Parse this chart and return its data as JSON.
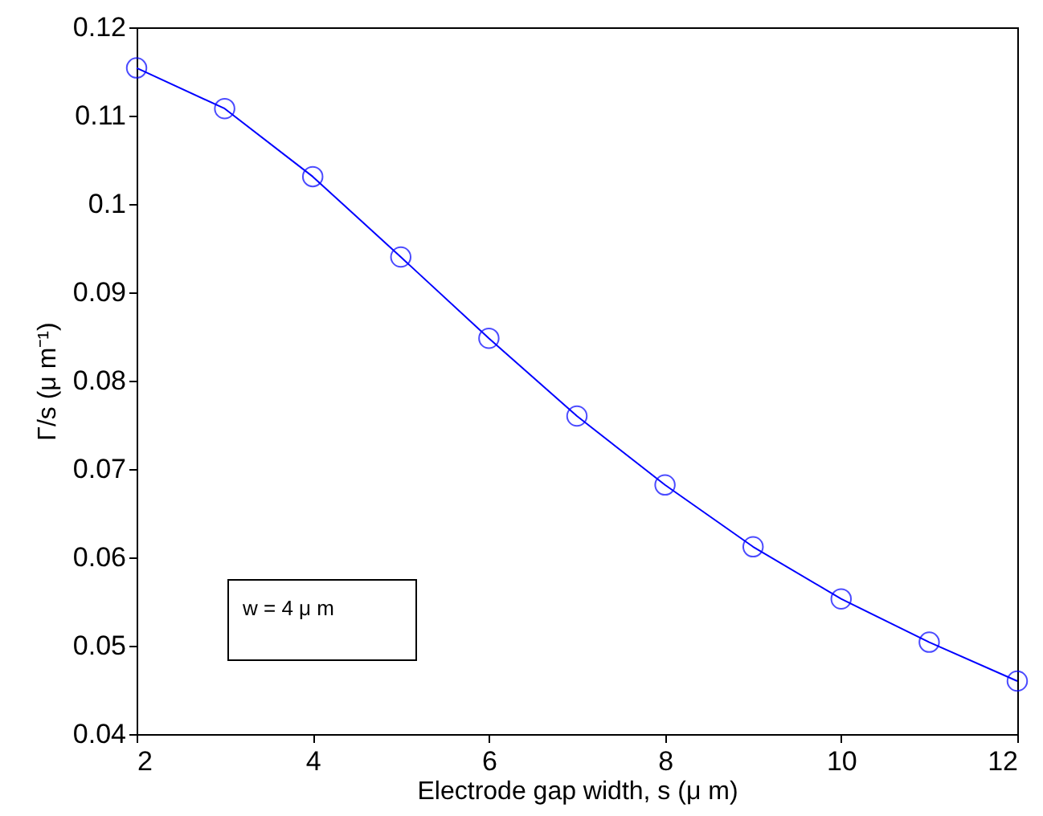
{
  "chart_data": {
    "type": "line",
    "xlabel": "Electrode gap  width, s (μ m)",
    "ylabel": "Γ/s (μ m⁻¹)",
    "x": [
      2,
      3,
      4,
      5,
      6,
      7,
      8,
      9,
      10,
      11,
      12
    ],
    "series": [
      {
        "color": "#0000ff",
        "values": [
          0.1154,
          0.1108,
          0.1031,
          0.094,
          0.0848,
          0.076,
          0.0682,
          0.0612,
          0.0553,
          0.0504,
          0.046
        ]
      }
    ],
    "marker": "circle",
    "line_style": "solid",
    "grid": false,
    "xlim": [
      2,
      12
    ],
    "xticks": [
      2,
      4,
      6,
      8,
      10,
      12
    ],
    "ylim": [
      0.04,
      0.12
    ],
    "yticks": [
      0.04,
      0.05,
      0.06,
      0.07,
      0.08,
      0.09,
      {
        "value": 0.1,
        "label": "0.1"
      },
      0.11,
      0.12
    ],
    "annotations": [
      "w = 4 μ m"
    ]
  }
}
